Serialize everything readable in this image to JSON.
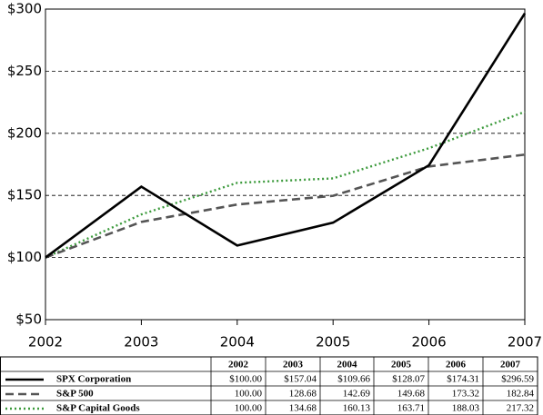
{
  "chart_data": {
    "type": "line",
    "categories": [
      "2002",
      "2003",
      "2004",
      "2005",
      "2006",
      "2007"
    ],
    "ylim": [
      50,
      300
    ],
    "yticks": [
      {
        "value": 50,
        "label": "$50"
      },
      {
        "value": 100,
        "label": "$100"
      },
      {
        "value": 150,
        "label": "$150"
      },
      {
        "value": 200,
        "label": "$200"
      },
      {
        "value": 250,
        "label": "$250"
      },
      {
        "value": 300,
        "label": "$300"
      }
    ],
    "grid": true,
    "series": [
      {
        "name": "SPX Corporation",
        "color": "#000000",
        "line_style": "solid",
        "values": [
          100,
          157.04,
          109.66,
          128.07,
          174.31,
          296.59
        ],
        "value_labels": [
          "$100.00",
          "$157.04",
          "$109.66",
          "$128.07",
          "$174.31",
          "$296.59"
        ]
      },
      {
        "name": "S&P 500",
        "color": "#555555",
        "line_style": "dashed",
        "values": [
          100,
          128.68,
          142.69,
          149.68,
          173.32,
          182.84
        ],
        "value_labels": [
          "100.00",
          "128.68",
          "142.69",
          "149.68",
          "173.32",
          "182.84"
        ]
      },
      {
        "name": "S&P Capital Goods",
        "color": "#3c9a3c",
        "line_style": "dotted",
        "values": [
          100,
          134.68,
          160.13,
          163.71,
          188.03,
          217.32
        ],
        "value_labels": [
          "100.00",
          "134.68",
          "160.13",
          "163.71",
          "188.03",
          "217.32"
        ]
      }
    ]
  }
}
